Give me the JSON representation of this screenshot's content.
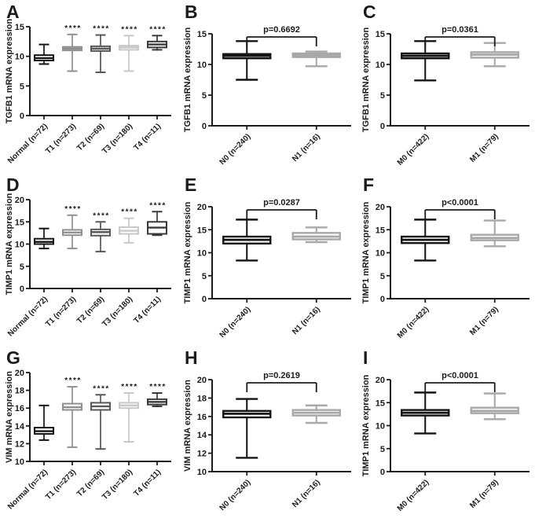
{
  "figure": {
    "axis_color": "#1b1b1b",
    "box_fill": "#ffffff"
  },
  "chart_data": [
    {
      "letter": "A",
      "type": "box",
      "ylabel": "TGFB1 mRNA expression",
      "ylim": [
        0,
        15
      ],
      "yticks": [
        0,
        5,
        10,
        15
      ],
      "p_label": null,
      "groups": [
        {
          "label": "Normal (n=72)",
          "whisker_low": 8.7,
          "q1": 9.3,
          "median": 9.7,
          "q3": 10.2,
          "whisker_high": 12.0,
          "color": "#141414",
          "sig": ""
        },
        {
          "label": "T1 (n=273)",
          "whisker_low": 7.5,
          "q1": 11.0,
          "median": 11.3,
          "q3": 11.6,
          "whisker_high": 13.7,
          "color": "#909090",
          "sig": "****"
        },
        {
          "label": "T2 (n=69)",
          "whisker_low": 7.3,
          "q1": 10.9,
          "median": 11.3,
          "q3": 11.7,
          "whisker_high": 13.6,
          "color": "#585858",
          "sig": "****"
        },
        {
          "label": "T3 (n=180)",
          "whisker_low": 7.5,
          "q1": 11.1,
          "median": 11.5,
          "q3": 11.8,
          "whisker_high": 13.5,
          "color": "#c8c8c8",
          "sig": "****"
        },
        {
          "label": "T4 (n=11)",
          "whisker_low": 11.1,
          "q1": 11.5,
          "median": 12.0,
          "q3": 12.5,
          "whisker_high": 13.5,
          "color": "#3a3a3a",
          "sig": "****"
        }
      ]
    },
    {
      "letter": "B",
      "type": "box",
      "ylabel": "TGFB1 mRNA expression",
      "ylim": [
        0,
        15
      ],
      "yticks": [
        0,
        5,
        10,
        15
      ],
      "p_label": "p=0.6692",
      "groups": [
        {
          "label": "N0 (n=240)",
          "whisker_low": 7.5,
          "q1": 11.0,
          "median": 11.4,
          "q3": 11.7,
          "whisker_high": 13.8,
          "color": "#141414",
          "sig": ""
        },
        {
          "label": "N1 (n=16)",
          "whisker_low": 9.7,
          "q1": 11.2,
          "median": 11.5,
          "q3": 11.8,
          "whisker_high": 12.1,
          "color": "#a8a8a8",
          "sig": ""
        }
      ]
    },
    {
      "letter": "C",
      "type": "box",
      "ylabel": "TGFB1 mRNA expression",
      "ylim": [
        0,
        15
      ],
      "yticks": [
        0,
        5,
        10,
        15
      ],
      "p_label": "p=0.0361",
      "groups": [
        {
          "label": "M0 (n=422)",
          "whisker_low": 7.4,
          "q1": 11.0,
          "median": 11.4,
          "q3": 11.8,
          "whisker_high": 13.8,
          "color": "#141414",
          "sig": ""
        },
        {
          "label": "M1 (n=79)",
          "whisker_low": 9.7,
          "q1": 11.1,
          "median": 11.6,
          "q3": 12.0,
          "whisker_high": 13.5,
          "color": "#a8a8a8",
          "sig": ""
        }
      ]
    },
    {
      "letter": "D",
      "type": "box",
      "ylabel": "TIMP1 mRNA expression",
      "ylim": [
        0,
        20
      ],
      "yticks": [
        0,
        5,
        10,
        15,
        20
      ],
      "p_label": null,
      "groups": [
        {
          "label": "Normal (n=72)",
          "whisker_low": 9.0,
          "q1": 10.0,
          "median": 10.5,
          "q3": 11.2,
          "whisker_high": 13.5,
          "color": "#141414",
          "sig": ""
        },
        {
          "label": "T1 (n=273)",
          "whisker_low": 9.0,
          "q1": 12.0,
          "median": 12.6,
          "q3": 13.2,
          "whisker_high": 16.5,
          "color": "#909090",
          "sig": "****"
        },
        {
          "label": "T2 (n=69)",
          "whisker_low": 8.3,
          "q1": 11.9,
          "median": 12.7,
          "q3": 13.3,
          "whisker_high": 15.0,
          "color": "#585858",
          "sig": "****"
        },
        {
          "label": "T3 (n=180)",
          "whisker_low": 10.3,
          "q1": 12.3,
          "median": 13.0,
          "q3": 13.8,
          "whisker_high": 15.8,
          "color": "#c8c8c8",
          "sig": "****"
        },
        {
          "label": "T4 (n=11)",
          "whisker_low": 12.0,
          "q1": 12.3,
          "median": 13.7,
          "q3": 15.0,
          "whisker_high": 17.3,
          "color": "#3a3a3a",
          "sig": "****"
        }
      ]
    },
    {
      "letter": "E",
      "type": "box",
      "ylabel": "TIMP1 mRNA expression",
      "ylim": [
        0,
        20
      ],
      "yticks": [
        0,
        5,
        10,
        15,
        20
      ],
      "p_label": "p=0.0287",
      "groups": [
        {
          "label": "N0 (n=240)",
          "whisker_low": 8.3,
          "q1": 12.0,
          "median": 12.8,
          "q3": 13.5,
          "whisker_high": 17.2,
          "color": "#141414",
          "sig": ""
        },
        {
          "label": "N1 (n=16)",
          "whisker_low": 12.3,
          "q1": 12.9,
          "median": 13.5,
          "q3": 14.3,
          "whisker_high": 15.5,
          "color": "#a8a8a8",
          "sig": ""
        }
      ]
    },
    {
      "letter": "F",
      "type": "box",
      "ylabel": "TIMP1 mRNA expression",
      "ylim": [
        0,
        20
      ],
      "yticks": [
        0,
        5,
        10,
        15,
        20
      ],
      "p_label": "p<0.0001",
      "groups": [
        {
          "label": "M0 (n=422)",
          "whisker_low": 8.3,
          "q1": 12.1,
          "median": 12.8,
          "q3": 13.5,
          "whisker_high": 17.2,
          "color": "#141414",
          "sig": ""
        },
        {
          "label": "M1 (n=79)",
          "whisker_low": 11.4,
          "q1": 12.7,
          "median": 13.2,
          "q3": 13.9,
          "whisker_high": 17.0,
          "color": "#a8a8a8",
          "sig": ""
        }
      ]
    },
    {
      "letter": "G",
      "type": "box",
      "ylabel": "VIM mRNA expression",
      "ylim": [
        10,
        20
      ],
      "yticks": [
        10,
        12,
        14,
        16,
        18,
        20
      ],
      "p_label": null,
      "groups": [
        {
          "label": "Normal (n=72)",
          "whisker_low": 12.4,
          "q1": 13.1,
          "median": 13.4,
          "q3": 13.8,
          "whisker_high": 16.3,
          "color": "#141414",
          "sig": ""
        },
        {
          "label": "T1 (n=273)",
          "whisker_low": 11.6,
          "q1": 15.8,
          "median": 16.1,
          "q3": 16.5,
          "whisker_high": 18.4,
          "color": "#909090",
          "sig": "****"
        },
        {
          "label": "T2 (n=69)",
          "whisker_low": 11.4,
          "q1": 15.8,
          "median": 16.2,
          "q3": 16.6,
          "whisker_high": 17.5,
          "color": "#585858",
          "sig": "****"
        },
        {
          "label": "T3 (n=180)",
          "whisker_low": 12.2,
          "q1": 16.0,
          "median": 16.3,
          "q3": 16.6,
          "whisker_high": 17.7,
          "color": "#c8c8c8",
          "sig": "****"
        },
        {
          "label": "T4 (n=11)",
          "whisker_low": 16.2,
          "q1": 16.4,
          "median": 16.7,
          "q3": 17.0,
          "whisker_high": 17.7,
          "color": "#3a3a3a",
          "sig": "****"
        }
      ]
    },
    {
      "letter": "H",
      "type": "box",
      "ylabel": "VIM mRNA expression",
      "ylim": [
        10,
        20
      ],
      "yticks": [
        10,
        12,
        14,
        16,
        18,
        20
      ],
      "p_label": "p=0.2619",
      "groups": [
        {
          "label": "N0 (n=240)",
          "whisker_low": 11.5,
          "q1": 15.9,
          "median": 16.3,
          "q3": 16.6,
          "whisker_high": 17.9,
          "color": "#141414",
          "sig": ""
        },
        {
          "label": "N1 (n=16)",
          "whisker_low": 15.3,
          "q1": 16.1,
          "median": 16.4,
          "q3": 16.7,
          "whisker_high": 17.2,
          "color": "#a8a8a8",
          "sig": ""
        }
      ]
    },
    {
      "letter": "I",
      "type": "box",
      "ylabel": "TIMP1 mRNA expression",
      "ylim": [
        0,
        20
      ],
      "yticks": [
        0,
        5,
        10,
        15,
        20
      ],
      "p_label": "p<0.0001",
      "groups": [
        {
          "label": "M0 (n=422)",
          "whisker_low": 8.3,
          "q1": 12.2,
          "median": 12.8,
          "q3": 13.4,
          "whisker_high": 17.2,
          "color": "#141414",
          "sig": ""
        },
        {
          "label": "M1 (n=79)",
          "whisker_low": 11.4,
          "q1": 12.7,
          "median": 13.2,
          "q3": 13.9,
          "whisker_high": 17.0,
          "color": "#a8a8a8",
          "sig": ""
        }
      ]
    }
  ]
}
